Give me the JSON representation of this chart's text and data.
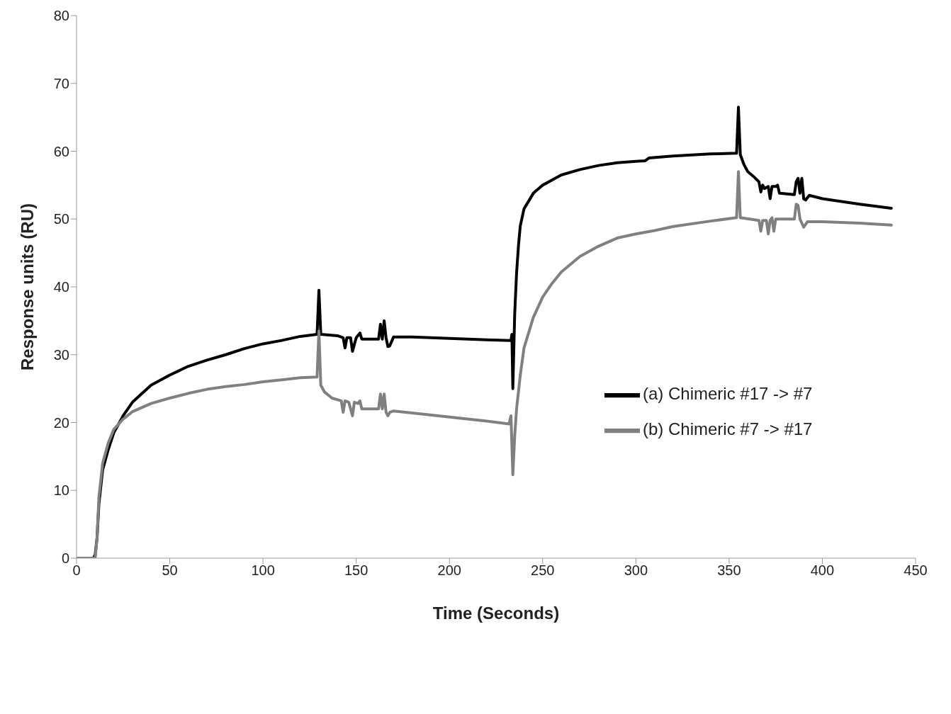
{
  "chart_data": {
    "type": "line",
    "xlabel": "Time (Seconds)",
    "ylabel": "Response units (RU)",
    "xlim": [
      0,
      450
    ],
    "xticks": [
      0,
      50,
      100,
      150,
      200,
      250,
      300,
      350,
      400,
      450
    ],
    "ylim": [
      0,
      80
    ],
    "yticks": [
      0,
      10,
      20,
      30,
      40,
      50,
      60,
      70,
      80
    ],
    "grid": false,
    "legend": "right",
    "marker": "none",
    "line_style": "solid",
    "series": [
      {
        "name": "(a) Chimeric #17 -> #7",
        "color": "#000000",
        "x": [
          0,
          9,
          10,
          11,
          12,
          14,
          17,
          20,
          25,
          30,
          40,
          50,
          60,
          70,
          80,
          90,
          100,
          110,
          120,
          129,
          130,
          131,
          140,
          143,
          144,
          145,
          147,
          148,
          149,
          150,
          152,
          153,
          162,
          163,
          164,
          165,
          166,
          167,
          168,
          170,
          180,
          200,
          220,
          233,
          233.5,
          234,
          235,
          236,
          237,
          238,
          240,
          245,
          250,
          260,
          270,
          280,
          290,
          300,
          305,
          307,
          320,
          340,
          354,
          355,
          356,
          358,
          360,
          363,
          366,
          367,
          368,
          369,
          371,
          372,
          373,
          375,
          376,
          377,
          385,
          386,
          387,
          388,
          389,
          390,
          391,
          393,
          400,
          420,
          437
        ],
        "values": [
          0,
          0,
          0.5,
          3,
          8,
          13,
          16,
          18.5,
          21,
          23,
          25.5,
          27,
          28.3,
          29.2,
          30,
          30.9,
          31.6,
          32.1,
          32.7,
          33,
          39.5,
          33,
          32.8,
          32.5,
          31,
          32.5,
          32.5,
          30.5,
          31.5,
          32.5,
          33.2,
          32.3,
          32.3,
          34.5,
          32.3,
          35,
          32.5,
          31.2,
          31.3,
          32.6,
          32.6,
          32.4,
          32.2,
          32.1,
          33,
          25,
          36,
          42,
          46,
          49,
          51.5,
          53.8,
          55,
          56.5,
          57.3,
          57.9,
          58.3,
          58.5,
          58.6,
          59,
          59.3,
          59.6,
          59.7,
          66.5,
          59.5,
          58,
          57,
          56.3,
          55.5,
          54,
          55,
          54.5,
          54.8,
          53,
          54.8,
          54.8,
          55,
          53.8,
          53.6,
          55.5,
          56,
          53.8,
          56,
          53,
          52.8,
          53.5,
          53,
          52.2,
          51.6
        ]
      },
      {
        "name": "(b) Chimeric #7 -> #17",
        "color": "#808080",
        "x": [
          0,
          10,
          11,
          12,
          14,
          17,
          20,
          25,
          30,
          40,
          50,
          60,
          70,
          80,
          90,
          100,
          110,
          120,
          129,
          130,
          131,
          133,
          137,
          142,
          143,
          144,
          146,
          147,
          148,
          149,
          151,
          152,
          153,
          162,
          163,
          164,
          165,
          166,
          167,
          168,
          170,
          180,
          200,
          220,
          232,
          233,
          234,
          235,
          236,
          238,
          240,
          245,
          250,
          255,
          260,
          270,
          280,
          290,
          300,
          310,
          320,
          340,
          354,
          355,
          356,
          366,
          367,
          368,
          370,
          371,
          372,
          373,
          374,
          375,
          385,
          386,
          387,
          388,
          390,
          392,
          400,
          420,
          437
        ],
        "values": [
          0,
          0,
          3,
          9,
          14,
          17,
          19,
          20.5,
          21.6,
          22.8,
          23.6,
          24.3,
          24.9,
          25.3,
          25.6,
          26,
          26.3,
          26.6,
          26.7,
          33.5,
          25.5,
          24.5,
          23.6,
          23.2,
          21.5,
          23.2,
          23,
          22,
          21,
          23,
          22.8,
          23.2,
          22,
          22,
          24.2,
          22,
          24.2,
          21.5,
          21,
          21.5,
          21.7,
          21.4,
          20.8,
          20.2,
          19.8,
          21,
          12.3,
          18,
          22,
          27,
          31,
          35.5,
          38.5,
          40.5,
          42.2,
          44.5,
          46,
          47.2,
          47.8,
          48.3,
          48.9,
          49.7,
          50.2,
          57,
          50.2,
          49.8,
          48.2,
          49.8,
          49.8,
          47.8,
          49.8,
          50.2,
          48.2,
          50,
          50,
          52.2,
          52,
          50,
          48.8,
          49.6,
          49.6,
          49.4,
          49.1
        ]
      }
    ]
  }
}
